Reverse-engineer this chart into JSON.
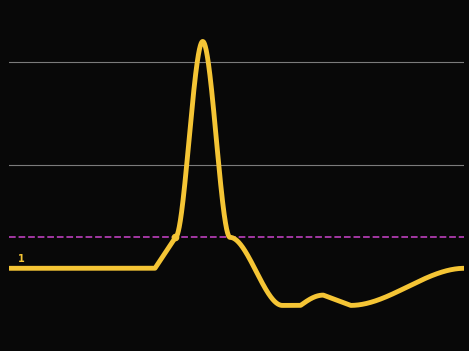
{
  "background_color": "#080808",
  "line_color": "#f5c535",
  "line_width": 3.5,
  "threshold_color": "#cc44cc",
  "threshold_dash": "--",
  "gridline_color": "#888888",
  "gridline_lw": 0.8,
  "resting_potential": -70,
  "threshold_potential": -55,
  "peak_potential": 40,
  "hyperpolarization": -88,
  "xlim": [
    0,
    10
  ],
  "ylim": [
    -105,
    55
  ],
  "figsize": [
    4.69,
    3.51
  ],
  "dpi": 100,
  "t_start_depol": 3.2,
  "t_threshold": 3.65,
  "t_peak": 4.25,
  "t_repol_cross_threshold": 4.85,
  "t_trough": 6.0,
  "t_bump_start": 6.4,
  "t_bump_peak": 6.9,
  "t_bump_end": 7.5,
  "t_recover": 10.0
}
